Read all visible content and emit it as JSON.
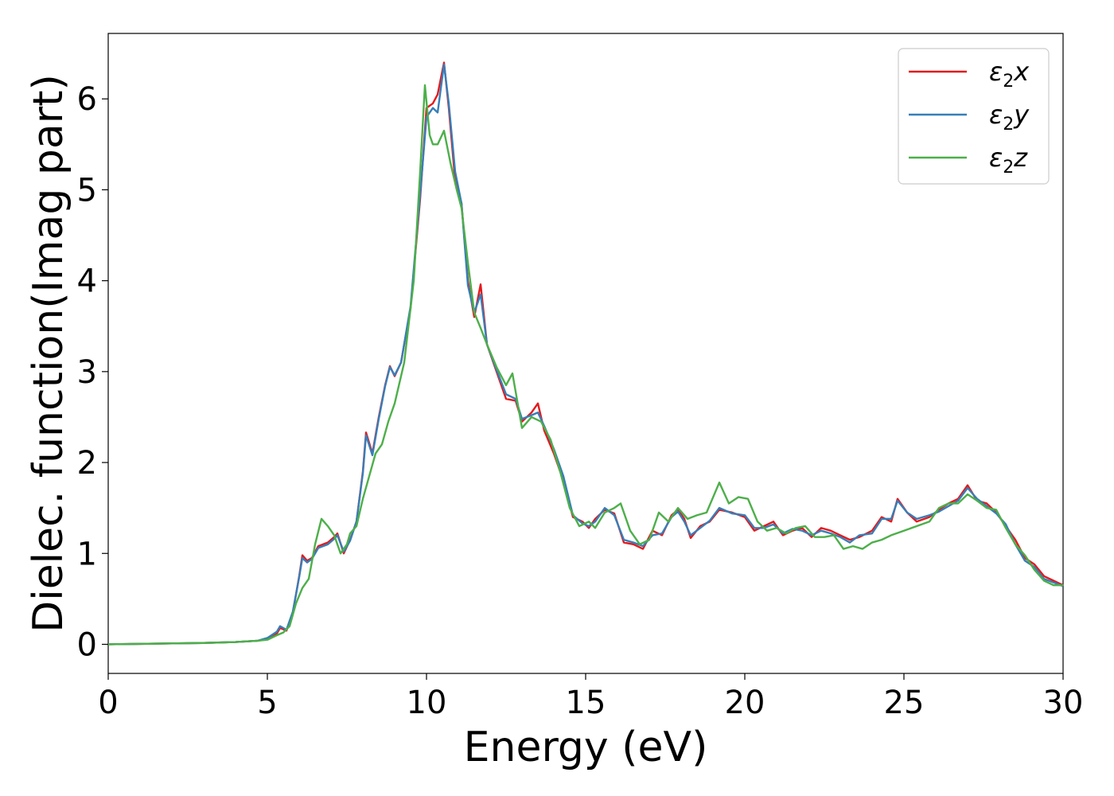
{
  "chart_data": {
    "type": "line",
    "xlabel": "Energy (eV)",
    "ylabel": "Dielec. function(Imag part)",
    "xlim": [
      0,
      30
    ],
    "ylim": [
      -0.32,
      6.72
    ],
    "xticks": [
      0,
      5,
      10,
      15,
      20,
      25,
      30
    ],
    "yticks": [
      0,
      1,
      2,
      3,
      4,
      5,
      6
    ],
    "grid": false,
    "legend_position": "top-right",
    "series": [
      {
        "name": "ε₂x",
        "legend_main": "ε",
        "legend_sub": "2",
        "legend_suffix": "x",
        "color": "#e41a1c",
        "points": [
          [
            0,
            0
          ],
          [
            1,
            0.005
          ],
          [
            2,
            0.01
          ],
          [
            3,
            0.015
          ],
          [
            4,
            0.025
          ],
          [
            4.7,
            0.04
          ],
          [
            5.0,
            0.06
          ],
          [
            5.3,
            0.12
          ],
          [
            5.4,
            0.18
          ],
          [
            5.6,
            0.15
          ],
          [
            5.8,
            0.35
          ],
          [
            6.0,
            0.75
          ],
          [
            6.1,
            0.98
          ],
          [
            6.25,
            0.92
          ],
          [
            6.4,
            0.95
          ],
          [
            6.6,
            1.08
          ],
          [
            6.9,
            1.12
          ],
          [
            7.1,
            1.18
          ],
          [
            7.2,
            1.22
          ],
          [
            7.4,
            1.0
          ],
          [
            7.6,
            1.15
          ],
          [
            7.8,
            1.35
          ],
          [
            8.0,
            1.9
          ],
          [
            8.1,
            2.33
          ],
          [
            8.3,
            2.1
          ],
          [
            8.5,
            2.5
          ],
          [
            8.7,
            2.85
          ],
          [
            8.85,
            3.06
          ],
          [
            9.0,
            2.95
          ],
          [
            9.2,
            3.1
          ],
          [
            9.5,
            3.7
          ],
          [
            9.8,
            4.9
          ],
          [
            10.0,
            5.9
          ],
          [
            10.2,
            5.95
          ],
          [
            10.35,
            6.05
          ],
          [
            10.55,
            6.4
          ],
          [
            10.7,
            5.9
          ],
          [
            10.9,
            5.1
          ],
          [
            11.1,
            4.85
          ],
          [
            11.3,
            4.0
          ],
          [
            11.5,
            3.6
          ],
          [
            11.7,
            3.96
          ],
          [
            11.9,
            3.3
          ],
          [
            12.2,
            3.0
          ],
          [
            12.5,
            2.7
          ],
          [
            12.8,
            2.68
          ],
          [
            13.0,
            2.45
          ],
          [
            13.3,
            2.55
          ],
          [
            13.5,
            2.65
          ],
          [
            13.7,
            2.35
          ],
          [
            14.0,
            2.1
          ],
          [
            14.3,
            1.8
          ],
          [
            14.6,
            1.4
          ],
          [
            14.9,
            1.35
          ],
          [
            15.1,
            1.28
          ],
          [
            15.3,
            1.38
          ],
          [
            15.6,
            1.48
          ],
          [
            15.9,
            1.44
          ],
          [
            16.2,
            1.12
          ],
          [
            16.5,
            1.1
          ],
          [
            16.8,
            1.05
          ],
          [
            17.1,
            1.25
          ],
          [
            17.4,
            1.2
          ],
          [
            17.7,
            1.42
          ],
          [
            17.9,
            1.48
          ],
          [
            18.1,
            1.38
          ],
          [
            18.3,
            1.17
          ],
          [
            18.6,
            1.3
          ],
          [
            18.9,
            1.35
          ],
          [
            19.2,
            1.48
          ],
          [
            19.6,
            1.45
          ],
          [
            20.0,
            1.4
          ],
          [
            20.3,
            1.25
          ],
          [
            20.6,
            1.3
          ],
          [
            20.9,
            1.35
          ],
          [
            21.2,
            1.2
          ],
          [
            21.5,
            1.25
          ],
          [
            21.8,
            1.28
          ],
          [
            22.1,
            1.18
          ],
          [
            22.4,
            1.28
          ],
          [
            22.7,
            1.25
          ],
          [
            23.0,
            1.2
          ],
          [
            23.3,
            1.15
          ],
          [
            23.6,
            1.18
          ],
          [
            24.0,
            1.25
          ],
          [
            24.3,
            1.4
          ],
          [
            24.6,
            1.35
          ],
          [
            24.8,
            1.6
          ],
          [
            25.1,
            1.45
          ],
          [
            25.4,
            1.35
          ],
          [
            25.8,
            1.4
          ],
          [
            26.1,
            1.48
          ],
          [
            26.4,
            1.55
          ],
          [
            26.7,
            1.6
          ],
          [
            27.0,
            1.75
          ],
          [
            27.3,
            1.58
          ],
          [
            27.6,
            1.55
          ],
          [
            27.9,
            1.45
          ],
          [
            28.2,
            1.3
          ],
          [
            28.5,
            1.15
          ],
          [
            28.8,
            0.95
          ],
          [
            29.1,
            0.88
          ],
          [
            29.4,
            0.75
          ],
          [
            29.7,
            0.7
          ],
          [
            30.0,
            0.65
          ]
        ]
      },
      {
        "name": "ε₂y",
        "legend_main": "ε",
        "legend_sub": "2",
        "legend_suffix": "y",
        "color": "#377eb8",
        "points": [
          [
            0,
            0
          ],
          [
            1,
            0.005
          ],
          [
            2,
            0.01
          ],
          [
            3,
            0.015
          ],
          [
            4,
            0.025
          ],
          [
            4.7,
            0.04
          ],
          [
            5.0,
            0.07
          ],
          [
            5.3,
            0.14
          ],
          [
            5.4,
            0.2
          ],
          [
            5.6,
            0.16
          ],
          [
            5.8,
            0.36
          ],
          [
            6.0,
            0.74
          ],
          [
            6.1,
            0.95
          ],
          [
            6.25,
            0.9
          ],
          [
            6.4,
            0.94
          ],
          [
            6.6,
            1.06
          ],
          [
            6.9,
            1.1
          ],
          [
            7.1,
            1.16
          ],
          [
            7.2,
            1.2
          ],
          [
            7.4,
            1.02
          ],
          [
            7.6,
            1.14
          ],
          [
            7.8,
            1.35
          ],
          [
            8.0,
            1.88
          ],
          [
            8.1,
            2.3
          ],
          [
            8.3,
            2.08
          ],
          [
            8.5,
            2.48
          ],
          [
            8.7,
            2.84
          ],
          [
            8.85,
            3.05
          ],
          [
            9.0,
            2.96
          ],
          [
            9.2,
            3.1
          ],
          [
            9.5,
            3.72
          ],
          [
            9.8,
            4.95
          ],
          [
            10.0,
            5.8
          ],
          [
            10.2,
            5.9
          ],
          [
            10.35,
            5.85
          ],
          [
            10.55,
            6.38
          ],
          [
            10.7,
            5.95
          ],
          [
            10.9,
            5.2
          ],
          [
            11.1,
            4.85
          ],
          [
            11.3,
            3.95
          ],
          [
            11.5,
            3.65
          ],
          [
            11.7,
            3.85
          ],
          [
            11.9,
            3.3
          ],
          [
            12.2,
            3.02
          ],
          [
            12.5,
            2.75
          ],
          [
            12.8,
            2.7
          ],
          [
            13.0,
            2.48
          ],
          [
            13.3,
            2.52
          ],
          [
            13.5,
            2.55
          ],
          [
            13.7,
            2.4
          ],
          [
            14.0,
            2.15
          ],
          [
            14.3,
            1.85
          ],
          [
            14.6,
            1.42
          ],
          [
            14.9,
            1.33
          ],
          [
            15.1,
            1.3
          ],
          [
            15.3,
            1.35
          ],
          [
            15.6,
            1.5
          ],
          [
            15.9,
            1.42
          ],
          [
            16.2,
            1.15
          ],
          [
            16.5,
            1.12
          ],
          [
            16.8,
            1.08
          ],
          [
            17.1,
            1.2
          ],
          [
            17.4,
            1.22
          ],
          [
            17.7,
            1.4
          ],
          [
            17.9,
            1.46
          ],
          [
            18.1,
            1.35
          ],
          [
            18.3,
            1.2
          ],
          [
            18.6,
            1.28
          ],
          [
            18.9,
            1.36
          ],
          [
            19.2,
            1.5
          ],
          [
            19.6,
            1.44
          ],
          [
            20.0,
            1.42
          ],
          [
            20.3,
            1.28
          ],
          [
            20.6,
            1.28
          ],
          [
            20.9,
            1.32
          ],
          [
            21.2,
            1.22
          ],
          [
            21.5,
            1.27
          ],
          [
            21.8,
            1.25
          ],
          [
            22.1,
            1.2
          ],
          [
            22.4,
            1.25
          ],
          [
            22.7,
            1.22
          ],
          [
            23.0,
            1.18
          ],
          [
            23.3,
            1.12
          ],
          [
            23.6,
            1.2
          ],
          [
            24.0,
            1.22
          ],
          [
            24.3,
            1.38
          ],
          [
            24.6,
            1.38
          ],
          [
            24.8,
            1.58
          ],
          [
            25.1,
            1.45
          ],
          [
            25.4,
            1.38
          ],
          [
            25.8,
            1.42
          ],
          [
            26.1,
            1.46
          ],
          [
            26.4,
            1.52
          ],
          [
            26.7,
            1.58
          ],
          [
            27.0,
            1.72
          ],
          [
            27.3,
            1.6
          ],
          [
            27.6,
            1.52
          ],
          [
            27.9,
            1.44
          ],
          [
            28.2,
            1.32
          ],
          [
            28.5,
            1.1
          ],
          [
            28.8,
            0.92
          ],
          [
            29.1,
            0.85
          ],
          [
            29.4,
            0.72
          ],
          [
            29.7,
            0.68
          ],
          [
            30.0,
            0.64
          ]
        ]
      },
      {
        "name": "ε₂z",
        "legend_main": "ε",
        "legend_sub": "2",
        "legend_suffix": "z",
        "color": "#4daf4a",
        "points": [
          [
            0,
            0
          ],
          [
            1,
            0.005
          ],
          [
            2,
            0.01
          ],
          [
            3,
            0.015
          ],
          [
            4,
            0.025
          ],
          [
            4.7,
            0.04
          ],
          [
            5.0,
            0.05
          ],
          [
            5.3,
            0.1
          ],
          [
            5.5,
            0.13
          ],
          [
            5.7,
            0.2
          ],
          [
            5.9,
            0.45
          ],
          [
            6.1,
            0.62
          ],
          [
            6.3,
            0.72
          ],
          [
            6.5,
            1.1
          ],
          [
            6.7,
            1.38
          ],
          [
            6.9,
            1.3
          ],
          [
            7.1,
            1.2
          ],
          [
            7.3,
            1.0
          ],
          [
            7.5,
            1.1
          ],
          [
            7.6,
            1.22
          ],
          [
            7.8,
            1.3
          ],
          [
            8.0,
            1.6
          ],
          [
            8.2,
            1.85
          ],
          [
            8.4,
            2.1
          ],
          [
            8.6,
            2.2
          ],
          [
            8.8,
            2.45
          ],
          [
            9.0,
            2.65
          ],
          [
            9.3,
            3.1
          ],
          [
            9.6,
            4.0
          ],
          [
            9.8,
            5.2
          ],
          [
            9.95,
            6.15
          ],
          [
            10.1,
            5.6
          ],
          [
            10.2,
            5.5
          ],
          [
            10.35,
            5.5
          ],
          [
            10.55,
            5.65
          ],
          [
            10.75,
            5.3
          ],
          [
            10.95,
            5.0
          ],
          [
            11.1,
            4.8
          ],
          [
            11.3,
            4.2
          ],
          [
            11.5,
            3.65
          ],
          [
            11.7,
            3.48
          ],
          [
            11.9,
            3.3
          ],
          [
            12.2,
            3.05
          ],
          [
            12.5,
            2.85
          ],
          [
            12.7,
            2.98
          ],
          [
            13.0,
            2.38
          ],
          [
            13.3,
            2.5
          ],
          [
            13.6,
            2.45
          ],
          [
            13.9,
            2.25
          ],
          [
            14.2,
            1.9
          ],
          [
            14.5,
            1.5
          ],
          [
            14.8,
            1.3
          ],
          [
            15.1,
            1.35
          ],
          [
            15.3,
            1.28
          ],
          [
            15.6,
            1.45
          ],
          [
            15.9,
            1.5
          ],
          [
            16.1,
            1.55
          ],
          [
            16.4,
            1.25
          ],
          [
            16.7,
            1.1
          ],
          [
            17.0,
            1.15
          ],
          [
            17.3,
            1.45
          ],
          [
            17.6,
            1.35
          ],
          [
            17.9,
            1.5
          ],
          [
            18.2,
            1.38
          ],
          [
            18.5,
            1.42
          ],
          [
            18.8,
            1.45
          ],
          [
            19.2,
            1.78
          ],
          [
            19.5,
            1.55
          ],
          [
            19.8,
            1.62
          ],
          [
            20.1,
            1.6
          ],
          [
            20.4,
            1.35
          ],
          [
            20.7,
            1.25
          ],
          [
            21.0,
            1.28
          ],
          [
            21.3,
            1.22
          ],
          [
            21.6,
            1.28
          ],
          [
            21.9,
            1.3
          ],
          [
            22.2,
            1.18
          ],
          [
            22.5,
            1.18
          ],
          [
            22.8,
            1.2
          ],
          [
            23.1,
            1.05
          ],
          [
            23.4,
            1.08
          ],
          [
            23.7,
            1.05
          ],
          [
            24.0,
            1.12
          ],
          [
            24.3,
            1.15
          ],
          [
            24.6,
            1.2
          ],
          [
            25.0,
            1.25
          ],
          [
            25.4,
            1.3
          ],
          [
            25.8,
            1.35
          ],
          [
            26.1,
            1.5
          ],
          [
            26.4,
            1.55
          ],
          [
            26.7,
            1.55
          ],
          [
            27.0,
            1.65
          ],
          [
            27.3,
            1.58
          ],
          [
            27.6,
            1.5
          ],
          [
            27.9,
            1.48
          ],
          [
            28.2,
            1.28
          ],
          [
            28.5,
            1.1
          ],
          [
            28.8,
            0.98
          ],
          [
            29.1,
            0.82
          ],
          [
            29.4,
            0.7
          ],
          [
            29.7,
            0.65
          ],
          [
            30.0,
            0.65
          ]
        ]
      }
    ]
  }
}
